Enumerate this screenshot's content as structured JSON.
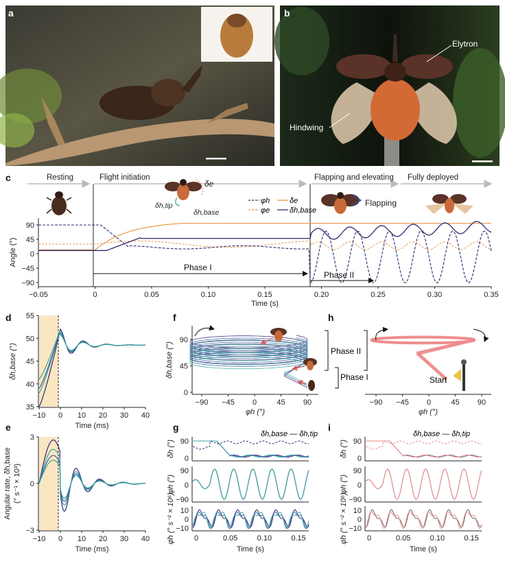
{
  "panels": {
    "a": "a",
    "b": "b",
    "c": "c",
    "d": "d",
    "e": "e",
    "f": "f",
    "g": "g",
    "h": "h",
    "i": "i"
  },
  "b": {
    "elytron": "Elytron",
    "hindwing": "Hindwing"
  },
  "c": {
    "stages": [
      "Resting",
      "Flight initiation",
      "Flapping and elevating",
      "Fully deployed"
    ],
    "flapping": "Flapping",
    "delta_e": "δe",
    "delta_tip": "δh,tip",
    "delta_base": "δh,base",
    "legend": [
      "φh",
      "δe",
      "φe",
      "δh,base"
    ],
    "phase1": "Phase I",
    "phase2": "Phase II",
    "ylabel": "Angle (°)",
    "xlabel": "Time (s)",
    "yticks": [
      "90",
      "45",
      "0",
      "−45",
      "−90"
    ],
    "xticks": [
      "−0.05",
      "0",
      "0.05",
      "0.10",
      "0.15",
      "0.20",
      "0.25",
      "0.30",
      "0.35"
    ]
  },
  "d": {
    "ylabel": "δh,base (°)",
    "xlabel": "Time (ms)",
    "yticks": [
      "55",
      "50",
      "45",
      "40",
      "35"
    ],
    "xticks": [
      "−10",
      "0",
      "10",
      "20",
      "30",
      "40"
    ]
  },
  "e": {
    "ylabel1": "Angular rate, δ̇h,base",
    "ylabel2": "(° s⁻¹ × 10³)",
    "xlabel": "Time (ms)",
    "yticks": [
      "3",
      "0",
      "−3"
    ],
    "xticks": [
      "−10",
      "0",
      "10",
      "20",
      "30",
      "40"
    ]
  },
  "f": {
    "ylabel": "δh,base (°)",
    "xlabel": "φh (°)",
    "yticks": [
      "90",
      "45",
      "0"
    ],
    "xticks": [
      "−90",
      "−45",
      "0",
      "45",
      "90"
    ],
    "phase1": "Phase I",
    "phase2": "Phase II"
  },
  "h": {
    "xlabel": "φh (°)",
    "xticks": [
      "−90",
      "−45",
      "0",
      "45",
      "90"
    ],
    "start": "Start",
    "phase1": "Phase I",
    "phase2": "Phase II"
  },
  "g": {
    "legend": "δh,base — δh,tip",
    "y1": "δh (°)",
    "y2": "φh (°)",
    "y3": "φ̈h (° s⁻² × 10⁶)",
    "t1": [
      "90",
      "0"
    ],
    "t2": [
      "90",
      "0",
      "−90"
    ],
    "t3": [
      "10",
      "0",
      "−10"
    ],
    "xticks": [
      "0",
      "0.05",
      "0.10",
      "0.15"
    ],
    "xlabel": "Time (s)"
  },
  "i": {
    "legend": "δh,base — δh,tip",
    "y1": "δh (°)",
    "y2": "φh (°)",
    "y3": "φ̈h (° s⁻² × 10⁶)",
    "t1": [
      "90",
      "0"
    ],
    "t2": [
      "90",
      "0",
      "−90"
    ],
    "t3": [
      "10",
      "0",
      "−10"
    ],
    "xticks": [
      "0",
      "0.05",
      "0.10",
      "0.15"
    ],
    "xlabel": "Time (s)"
  },
  "colors": {
    "orange": "#e8964a",
    "navy": "#2c2a6e",
    "teal": "#3aa5a0",
    "blue": "#3b5ba8",
    "pink": "#ec8a8a",
    "gray": "#666666",
    "shade": "#fbe6c2"
  }
}
